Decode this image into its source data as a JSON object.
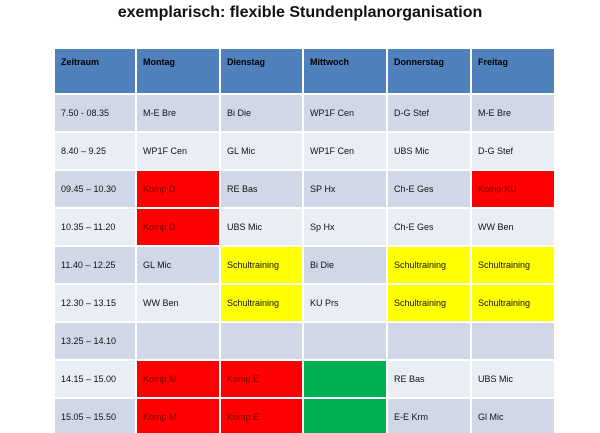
{
  "title": "exemplarisch: flexible Stundenplanorganisation",
  "colors": {
    "header": "#4f81bd",
    "row_dark": "#d0d8e8",
    "row_light": "#e9edf4",
    "red": "#ff0000",
    "yellow": "#ffff00",
    "green": "#00b050"
  },
  "headers": [
    "Zeitraum",
    "Montag",
    "Dienstag",
    "Mittwoch",
    "Donnerstag",
    "Freitag"
  ],
  "rows": [
    {
      "cells": [
        "7.50 -  08.35",
        "M-E Bre",
        "Bi Die",
        "WP1F Cen",
        "D-G Stef",
        "M-E Bre"
      ],
      "highlight": [
        "",
        "",
        "",
        "",
        "",
        ""
      ]
    },
    {
      "cells": [
        "8.40 – 9.25",
        "WP1F Cen",
        "GL Mic",
        "WP1F Cen",
        "UBS Mic",
        "D-G Stef"
      ],
      "highlight": [
        "",
        "",
        "",
        "",
        "",
        ""
      ]
    },
    {
      "cells": [
        "09.45 – 10.30",
        "Komp D",
        "RE Bas",
        "SP Hx",
        "Ch-E Ges",
        "Komp KU"
      ],
      "highlight": [
        "",
        "red",
        "",
        "",
        "",
        "red"
      ]
    },
    {
      "cells": [
        "10.35 – 11.20",
        "Komp D",
        "UBS Mic",
        "Sp Hx",
        "Ch-E Ges",
        "WW Ben"
      ],
      "highlight": [
        "",
        "red",
        "",
        "",
        "",
        ""
      ]
    },
    {
      "cells": [
        "11.40 – 12.25",
        "GL Mic",
        "Schultraining",
        "Bi Die",
        "Schultraining",
        "Schultraining"
      ],
      "highlight": [
        "",
        "",
        "yellow",
        "",
        "yellow",
        "yellow"
      ]
    },
    {
      "cells": [
        "12.30 – 13.15",
        "WW Ben",
        "Schultraining",
        "KU Prs",
        "Schultraining",
        "Schultraining"
      ],
      "highlight": [
        "",
        "",
        "yellow",
        "",
        "yellow",
        "yellow"
      ]
    },
    {
      "cells": [
        "13.25 – 14.10",
        "",
        "",
        "",
        "",
        ""
      ],
      "highlight": [
        "",
        "",
        "",
        "",
        "",
        ""
      ]
    },
    {
      "cells": [
        "14.15 – 15.00",
        "Komp M",
        "Komp E",
        "",
        "RE Bas",
        "UBS Mic"
      ],
      "highlight": [
        "",
        "red",
        "red",
        "green",
        "",
        ""
      ]
    },
    {
      "cells": [
        "15.05 – 15.50",
        "Komp M",
        "Komp E",
        "",
        "E-E Krm",
        "Gl Mic"
      ],
      "highlight": [
        "",
        "red",
        "red",
        "green",
        "",
        ""
      ]
    }
  ]
}
